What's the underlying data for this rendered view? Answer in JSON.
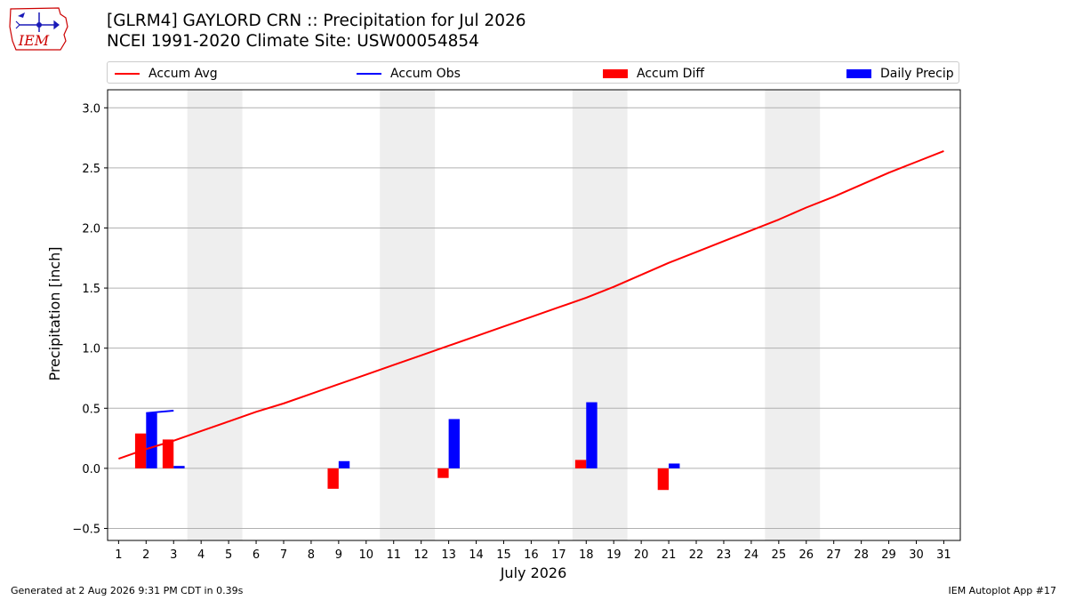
{
  "header": {
    "title_line1": "[GLRM4] GAYLORD CRN :: Precipitation for Jul 2026",
    "title_line2": "NCEI 1991-2020 Climate Site: USW00054854"
  },
  "logo": {
    "text": "IEM",
    "icon": "iowa-state-weather-vane-logo",
    "color": "#cc0000"
  },
  "footer": {
    "left": "Generated at 2 Aug 2026 9:31 PM CDT in 0.39s",
    "right": "IEM Autoplot App #17"
  },
  "chart_data": {
    "type": "bar",
    "xlabel": "July 2026",
    "ylabel": "Precipitation [inch]",
    "ylim": [
      -0.6,
      3.15
    ],
    "xlim": [
      0.6,
      31.6
    ],
    "yticks": [
      -0.5,
      0.0,
      0.5,
      1.0,
      1.5,
      2.0,
      2.5,
      3.0
    ],
    "ytick_labels": [
      "−0.5",
      "0.0",
      "0.5",
      "1.0",
      "1.5",
      "2.0",
      "2.5",
      "3.0"
    ],
    "xticks": [
      1,
      2,
      3,
      4,
      5,
      6,
      7,
      8,
      9,
      10,
      11,
      12,
      13,
      14,
      15,
      16,
      17,
      18,
      19,
      20,
      21,
      22,
      23,
      24,
      25,
      26,
      27,
      28,
      29,
      30,
      31
    ],
    "grid": "horizontal",
    "legend_position": "top",
    "weekend_shading": [
      [
        3.5,
        5.5
      ],
      [
        10.5,
        12.5
      ],
      [
        17.5,
        19.5
      ],
      [
        24.5,
        26.5
      ]
    ],
    "series": [
      {
        "name": "Accum Avg",
        "kind": "line",
        "color": "#ff0000",
        "x": [
          1,
          2,
          3,
          4,
          5,
          6,
          7,
          8,
          9,
          10,
          11,
          12,
          13,
          14,
          15,
          16,
          17,
          18,
          19,
          20,
          21,
          22,
          23,
          24,
          25,
          26,
          27,
          28,
          29,
          30,
          31
        ],
        "values": [
          0.08,
          0.16,
          0.23,
          0.31,
          0.39,
          0.47,
          0.54,
          0.62,
          0.7,
          0.78,
          0.86,
          0.94,
          1.02,
          1.1,
          1.18,
          1.26,
          1.34,
          1.42,
          1.51,
          1.61,
          1.71,
          1.8,
          1.89,
          1.98,
          2.07,
          2.17,
          2.26,
          2.36,
          2.46,
          2.55,
          2.64
        ]
      },
      {
        "name": "Accum Obs",
        "kind": "line",
        "color": "#0000ff",
        "x": [
          2,
          3
        ],
        "values": [
          0.46,
          0.48
        ]
      },
      {
        "name": "Accum Diff",
        "kind": "bar",
        "color": "#ff0000",
        "offset": -0.2,
        "x": [
          2,
          3,
          9,
          13,
          18,
          21
        ],
        "values": [
          0.29,
          0.24,
          -0.17,
          -0.08,
          0.07,
          -0.18
        ]
      },
      {
        "name": "Daily Precip",
        "kind": "bar",
        "color": "#0000ff",
        "offset": 0.2,
        "x": [
          2,
          3,
          9,
          13,
          18,
          21
        ],
        "values": [
          0.46,
          0.02,
          0.06,
          0.41,
          0.55,
          0.04
        ]
      }
    ]
  }
}
